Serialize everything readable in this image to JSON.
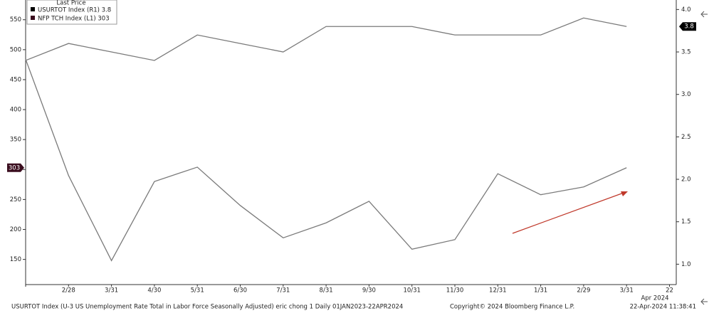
{
  "chart_data": {
    "type": "line",
    "legend_title": "Last Price",
    "categories": [
      null,
      "2/28",
      "3/31",
      "4/30",
      "5/31",
      "6/30",
      "7/31",
      "8/31",
      "9/30",
      "10/31",
      "11/30",
      "12/31",
      "1/31",
      "2/29",
      "3/31",
      "22"
    ],
    "x_sublabel": "Apr 2024",
    "line_color": "#7a7a7a",
    "series": [
      {
        "name": "USURTOT Index  (R1) 3.8",
        "color": "#000000",
        "axis": "y2",
        "values": [
          3.4,
          3.6,
          3.5,
          3.4,
          3.7,
          3.6,
          3.5,
          3.8,
          3.8,
          3.8,
          3.7,
          3.7,
          3.7,
          3.9,
          3.8,
          null
        ]
      },
      {
        "name": "NFP TCH Index  (L1)  303",
        "color": "#3a0d1e",
        "values": [
          484,
          290,
          148,
          280,
          304,
          240,
          186,
          211,
          247,
          167,
          183,
          293,
          258,
          271,
          303,
          null
        ]
      }
    ],
    "ylim": [
      108,
      577
    ],
    "yticks": [
      150,
      200,
      250,
      300,
      350,
      400,
      450,
      500,
      550
    ],
    "y2lim": [
      0.76,
      4.07
    ],
    "y2ticks": [
      {
        "value": 1,
        "label": "1.0"
      },
      1.5,
      {
        "value": 2,
        "label": "2.0"
      },
      2.5,
      {
        "value": 3,
        "label": "3.0"
      },
      3.5,
      {
        "value": 4,
        "label": "4.0"
      }
    ],
    "footer_left": "USURTOT Index (U-3 US Unemployment Rate Total in Labor Force Seasonally Adjusted) eric chong 1  Daily 01JAN2023-22APR2024",
    "footer_center": "Copyright© 2024 Bloomberg Finance L.P.",
    "footer_right": "22-Apr-2024 11:38:41"
  }
}
